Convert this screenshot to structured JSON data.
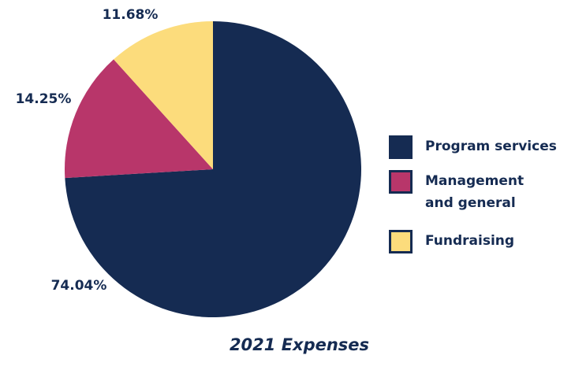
{
  "chart_data": {
    "type": "pie",
    "title": "2021 Expenses",
    "legend_placement": "right",
    "slices": [
      {
        "name": "Program services",
        "value": 74.04,
        "label": "74.04%",
        "color": "#152b52"
      },
      {
        "name": "Management and general",
        "value": 14.25,
        "label": "14.25%",
        "color": "#b8366a"
      },
      {
        "name": "Fundraising",
        "value": 11.68,
        "label": "11.68%",
        "color": "#fcdc7c"
      }
    ]
  }
}
